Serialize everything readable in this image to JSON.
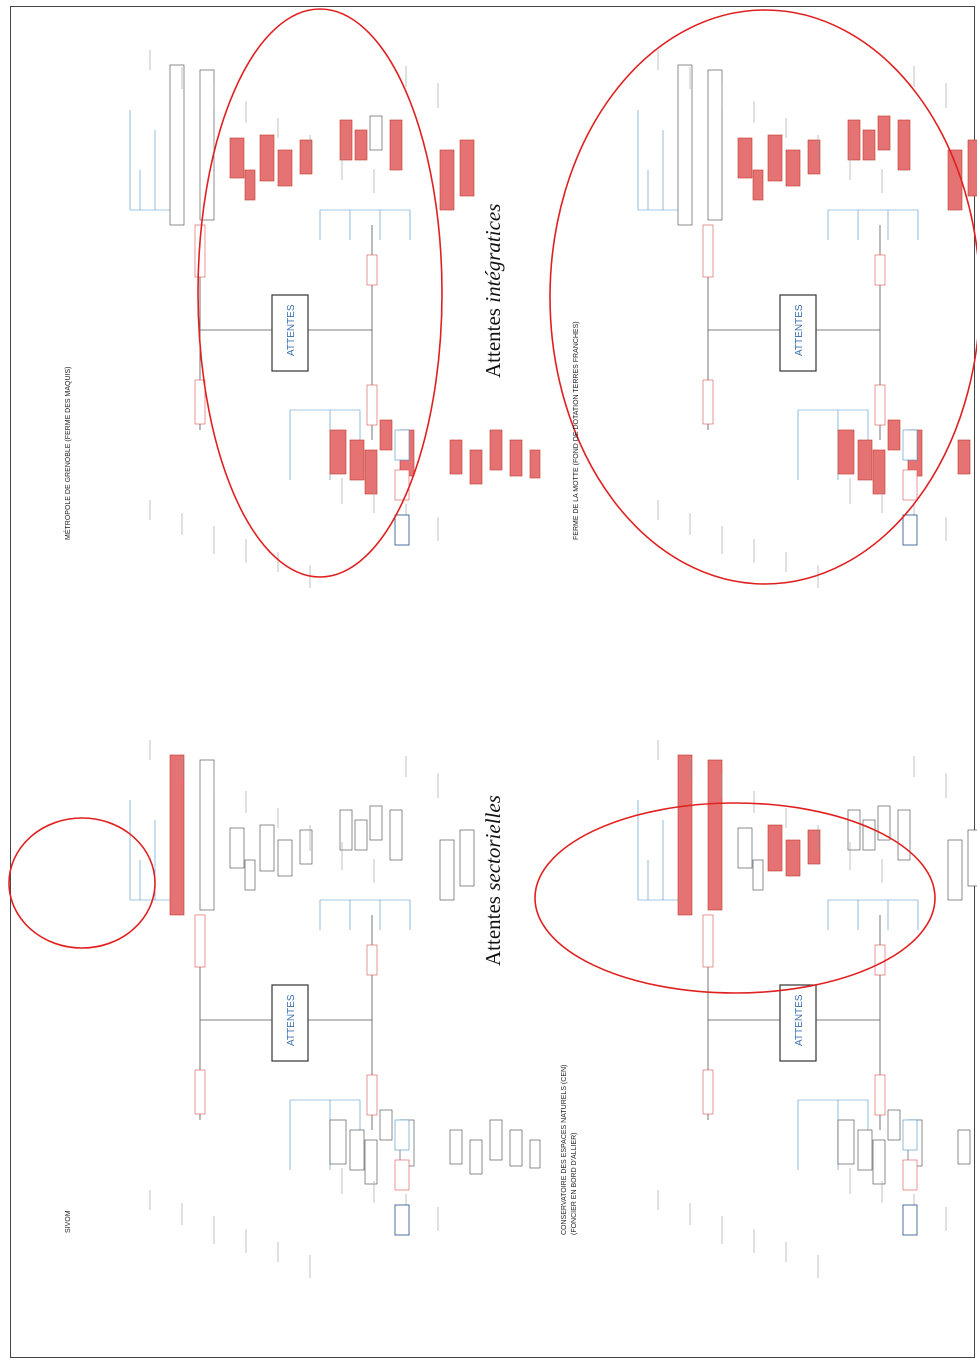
{
  "center_label": "ATTENTES",
  "panels": [
    {
      "id": "metropole",
      "title": "MÉTROPOLE DE GRENOBLE (FERME DES MAQUIS)",
      "subtitle": ""
    },
    {
      "id": "ferme",
      "title": "FERME DE LA MOTTE (FOND DE DOTATION TERRES FRANCHES)",
      "subtitle": ""
    },
    {
      "id": "sivom",
      "title": "SIVOM",
      "subtitle": ""
    },
    {
      "id": "cen",
      "title": "CONSERVATOIRE DES ESPACES NATURELS (CEN)",
      "subtitle": "(FONCIER EN BORD D'ALLIER)"
    }
  ],
  "captions": {
    "integratives": {
      "word": "Attentes",
      "emph": "intégratices"
    },
    "sectorielles": {
      "word": "Attentes",
      "emph": "sectorielles"
    }
  },
  "colors": {
    "node_red": "#e57373",
    "node_red_border": "#c0392b",
    "branch_red": "#d9534f",
    "branch_blue": "#4a90c8",
    "ellipse": "#e02020",
    "center_text": "#3a6fb0"
  },
  "highlights": {
    "metropole": "most nodes",
    "ferme": "most nodes",
    "sivom": "one node",
    "cen": "top branch nodes"
  }
}
